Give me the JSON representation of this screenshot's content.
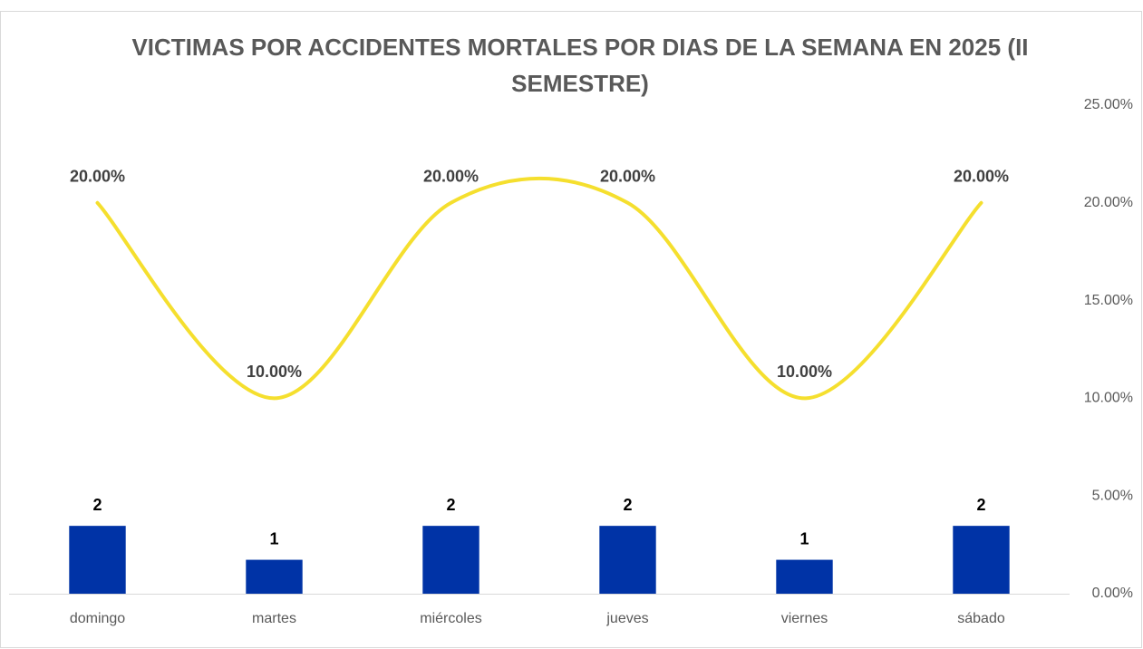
{
  "chart_data": {
    "type": "bar-line",
    "title": "VICTIMAS POR ACCIDENTES MORTALES POR DIAS DE LA SEMANA EN 2025 (II SEMESTRE)",
    "categories": [
      "domingo",
      "martes",
      "miércoles",
      "jueves",
      "viernes",
      "sábado"
    ],
    "series": [
      {
        "type": "bar",
        "color": "#0033a6",
        "values": [
          2,
          1,
          2,
          2,
          1,
          2
        ]
      },
      {
        "type": "line",
        "axis": "y2",
        "color": "#f5df2e",
        "smooth": true,
        "values": [
          20,
          10,
          20,
          20,
          10,
          20
        ],
        "value_labels": [
          "20.00%",
          "10.00%",
          "20.00%",
          "20.00%",
          "10.00%",
          "20.00%"
        ]
      }
    ],
    "ylim": [
      0,
      14.4
    ],
    "y2lim": [
      0,
      25
    ],
    "y2ticks": [
      {
        "value": 0,
        "label": "0.00%"
      },
      {
        "value": 5,
        "label": "5.00%"
      },
      {
        "value": 10,
        "label": "10.00%"
      },
      {
        "value": 15,
        "label": "15.00%"
      },
      {
        "value": 20,
        "label": "20.00%"
      },
      {
        "value": 25,
        "label": "25.00%"
      }
    ]
  }
}
